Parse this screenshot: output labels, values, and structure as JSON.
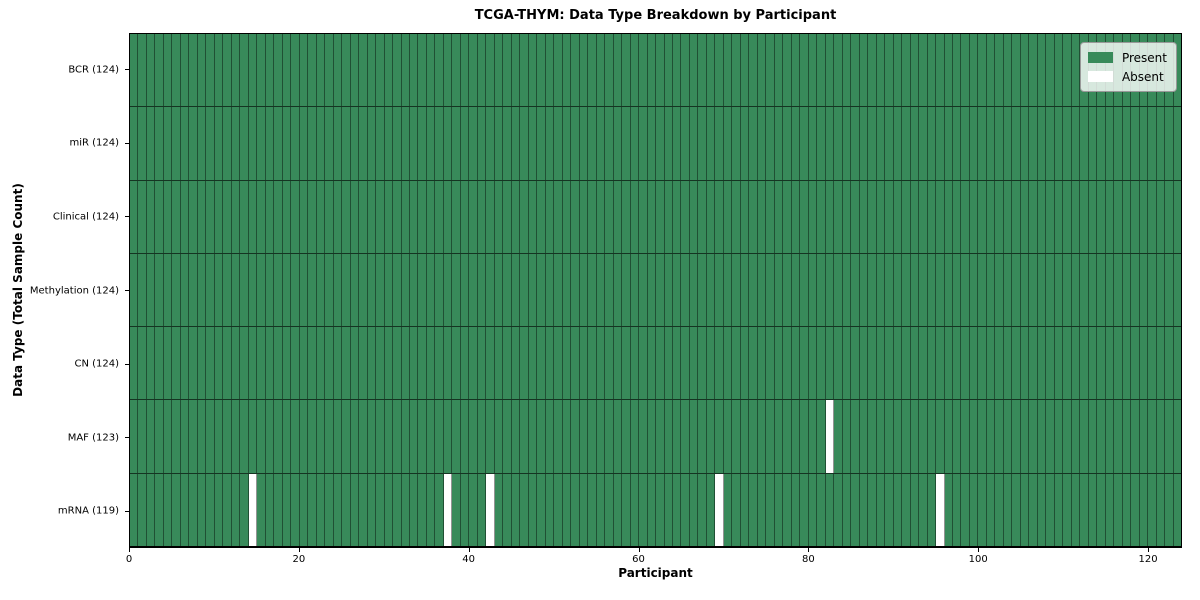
{
  "chart_data": {
    "type": "heatmap",
    "title": "TCGA-THYM: Data Type Breakdown by Participant",
    "xlabel": "Participant",
    "ylabel": "Data Type (Total Sample Count)",
    "n_participants": 124,
    "xlim": [
      0,
      124
    ],
    "x_ticks": [
      0,
      20,
      40,
      60,
      80,
      100,
      120
    ],
    "grid": "cell-borders",
    "colors": {
      "present": "#388a5a",
      "absent": "#ffffff"
    },
    "legend": {
      "position": "upper right",
      "items": [
        {
          "label": "Present",
          "color": "#388a5a"
        },
        {
          "label": "Absent",
          "color": "#ffffff"
        }
      ]
    },
    "rows": [
      {
        "label": "BCR (124)",
        "data_type": "BCR",
        "count": 124,
        "absent_participants": []
      },
      {
        "label": "miR (124)",
        "data_type": "miR",
        "count": 124,
        "absent_participants": []
      },
      {
        "label": "Clinical (124)",
        "data_type": "Clinical",
        "count": 124,
        "absent_participants": []
      },
      {
        "label": "Methylation (124)",
        "data_type": "Methylation",
        "count": 124,
        "absent_participants": []
      },
      {
        "label": "CN (124)",
        "data_type": "CN",
        "count": 124,
        "absent_participants": []
      },
      {
        "label": "MAF (123)",
        "data_type": "MAF",
        "count": 123,
        "absent_participants": [
          82
        ]
      },
      {
        "label": "mRNA (119)",
        "data_type": "mRNA",
        "count": 119,
        "absent_participants": [
          14,
          37,
          42,
          69,
          95
        ]
      }
    ]
  }
}
